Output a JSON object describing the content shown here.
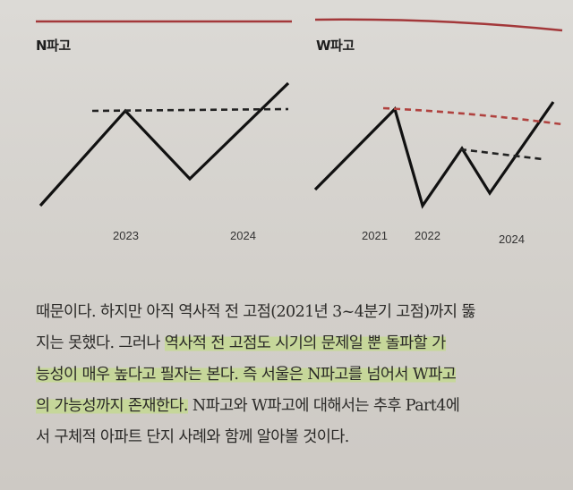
{
  "figure": {
    "panel_n": {
      "title": "N파고",
      "years": [
        "2023",
        "2024"
      ]
    },
    "panel_w": {
      "title": "W파고",
      "years": [
        "2021",
        "2022",
        "2024"
      ]
    },
    "colors": {
      "rule": "#a3383a",
      "wave": "#111111",
      "resistance_n": "#222222",
      "resistance_w_long": "#b0423f",
      "resistance_w_short": "#222222"
    }
  },
  "body": {
    "l1": "때문이다. 하지만 아직 역사적 전 고점(2021년 3~4분기 고점)까지 뚫",
    "l2a": "지는 못했다. 그러나 ",
    "l2b": "역사적 전 고점도 시기의 문제일 뿐 돌파할 가",
    "l3": "능성이 매우 높다고 필자는 본다. 즉 서울은 N파고를 넘어서 W파고",
    "l4a": "의 가능성까지 존재한다.",
    "l4b": " N파고와 W파고에 대해서는 추후 Part4에",
    "l5": "서 구체적 아파트 단지 사례와 함께 알아볼 것이다."
  }
}
